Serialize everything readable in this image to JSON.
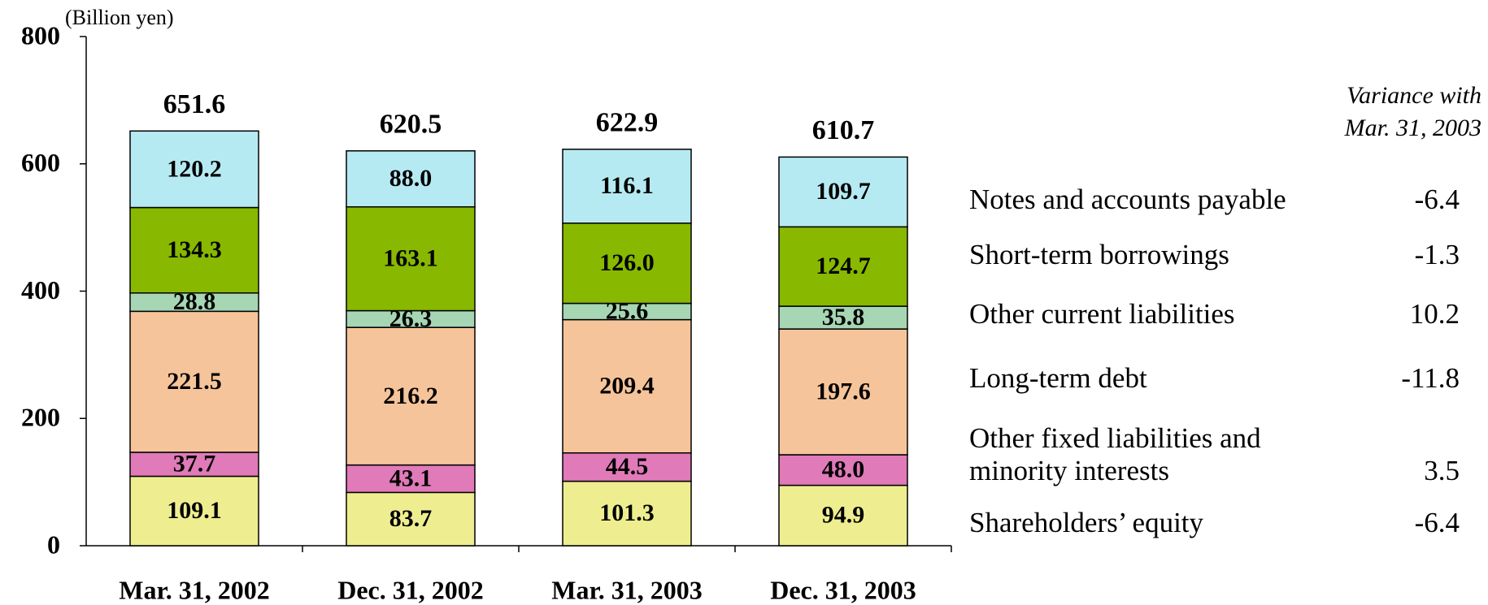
{
  "chart_data": {
    "type": "stacked_bar",
    "y_axis_label": "(Billion yen)",
    "categories": [
      "Mar. 31, 2002",
      "Dec. 31, 2002",
      "Mar. 31, 2003",
      "Dec. 31, 2003"
    ],
    "series": [
      {
        "name": "Shareholders’ equity",
        "color": "#eeee90",
        "values": [
          109.1,
          83.7,
          101.3,
          94.9
        ]
      },
      {
        "name": "Other fixed liabilities and\nminority interests",
        "color": "#e07ab8",
        "values": [
          37.7,
          43.1,
          44.5,
          48.0
        ],
        "value_labels": [
          "37.7",
          "43.1",
          "44.5",
          "48.0"
        ]
      },
      {
        "name": "Long-term debt",
        "color": "#f6c49a",
        "values": [
          221.5,
          216.2,
          209.4,
          197.6
        ]
      },
      {
        "name": "Other current liabilities",
        "color": "#a6d6b4",
        "values": [
          28.8,
          26.3,
          25.6,
          35.8
        ]
      },
      {
        "name": "Short-term borrowings",
        "color": "#88b800",
        "values": [
          134.3,
          163.1,
          126.0,
          124.7
        ],
        "value_labels": [
          "134.3",
          "163.1",
          "126.0",
          "124.7"
        ]
      },
      {
        "name": "Notes and accounts payable",
        "color": "#b6eaf2",
        "values": [
          120.2,
          88.0,
          116.1,
          109.7
        ],
        "value_labels": [
          "120.2",
          "88.0",
          "116.1",
          "109.7"
        ]
      }
    ],
    "totals": [
      651.6,
      620.5,
      622.9,
      610.7
    ],
    "ylim": [
      0,
      800
    ],
    "yticks": [
      0,
      200,
      400,
      600,
      800
    ],
    "variance_title": "Variance with\nMar. 31, 2003",
    "variances": [
      -6.4,
      3.5,
      -11.8,
      10.2,
      -1.3,
      -6.4
    ]
  }
}
